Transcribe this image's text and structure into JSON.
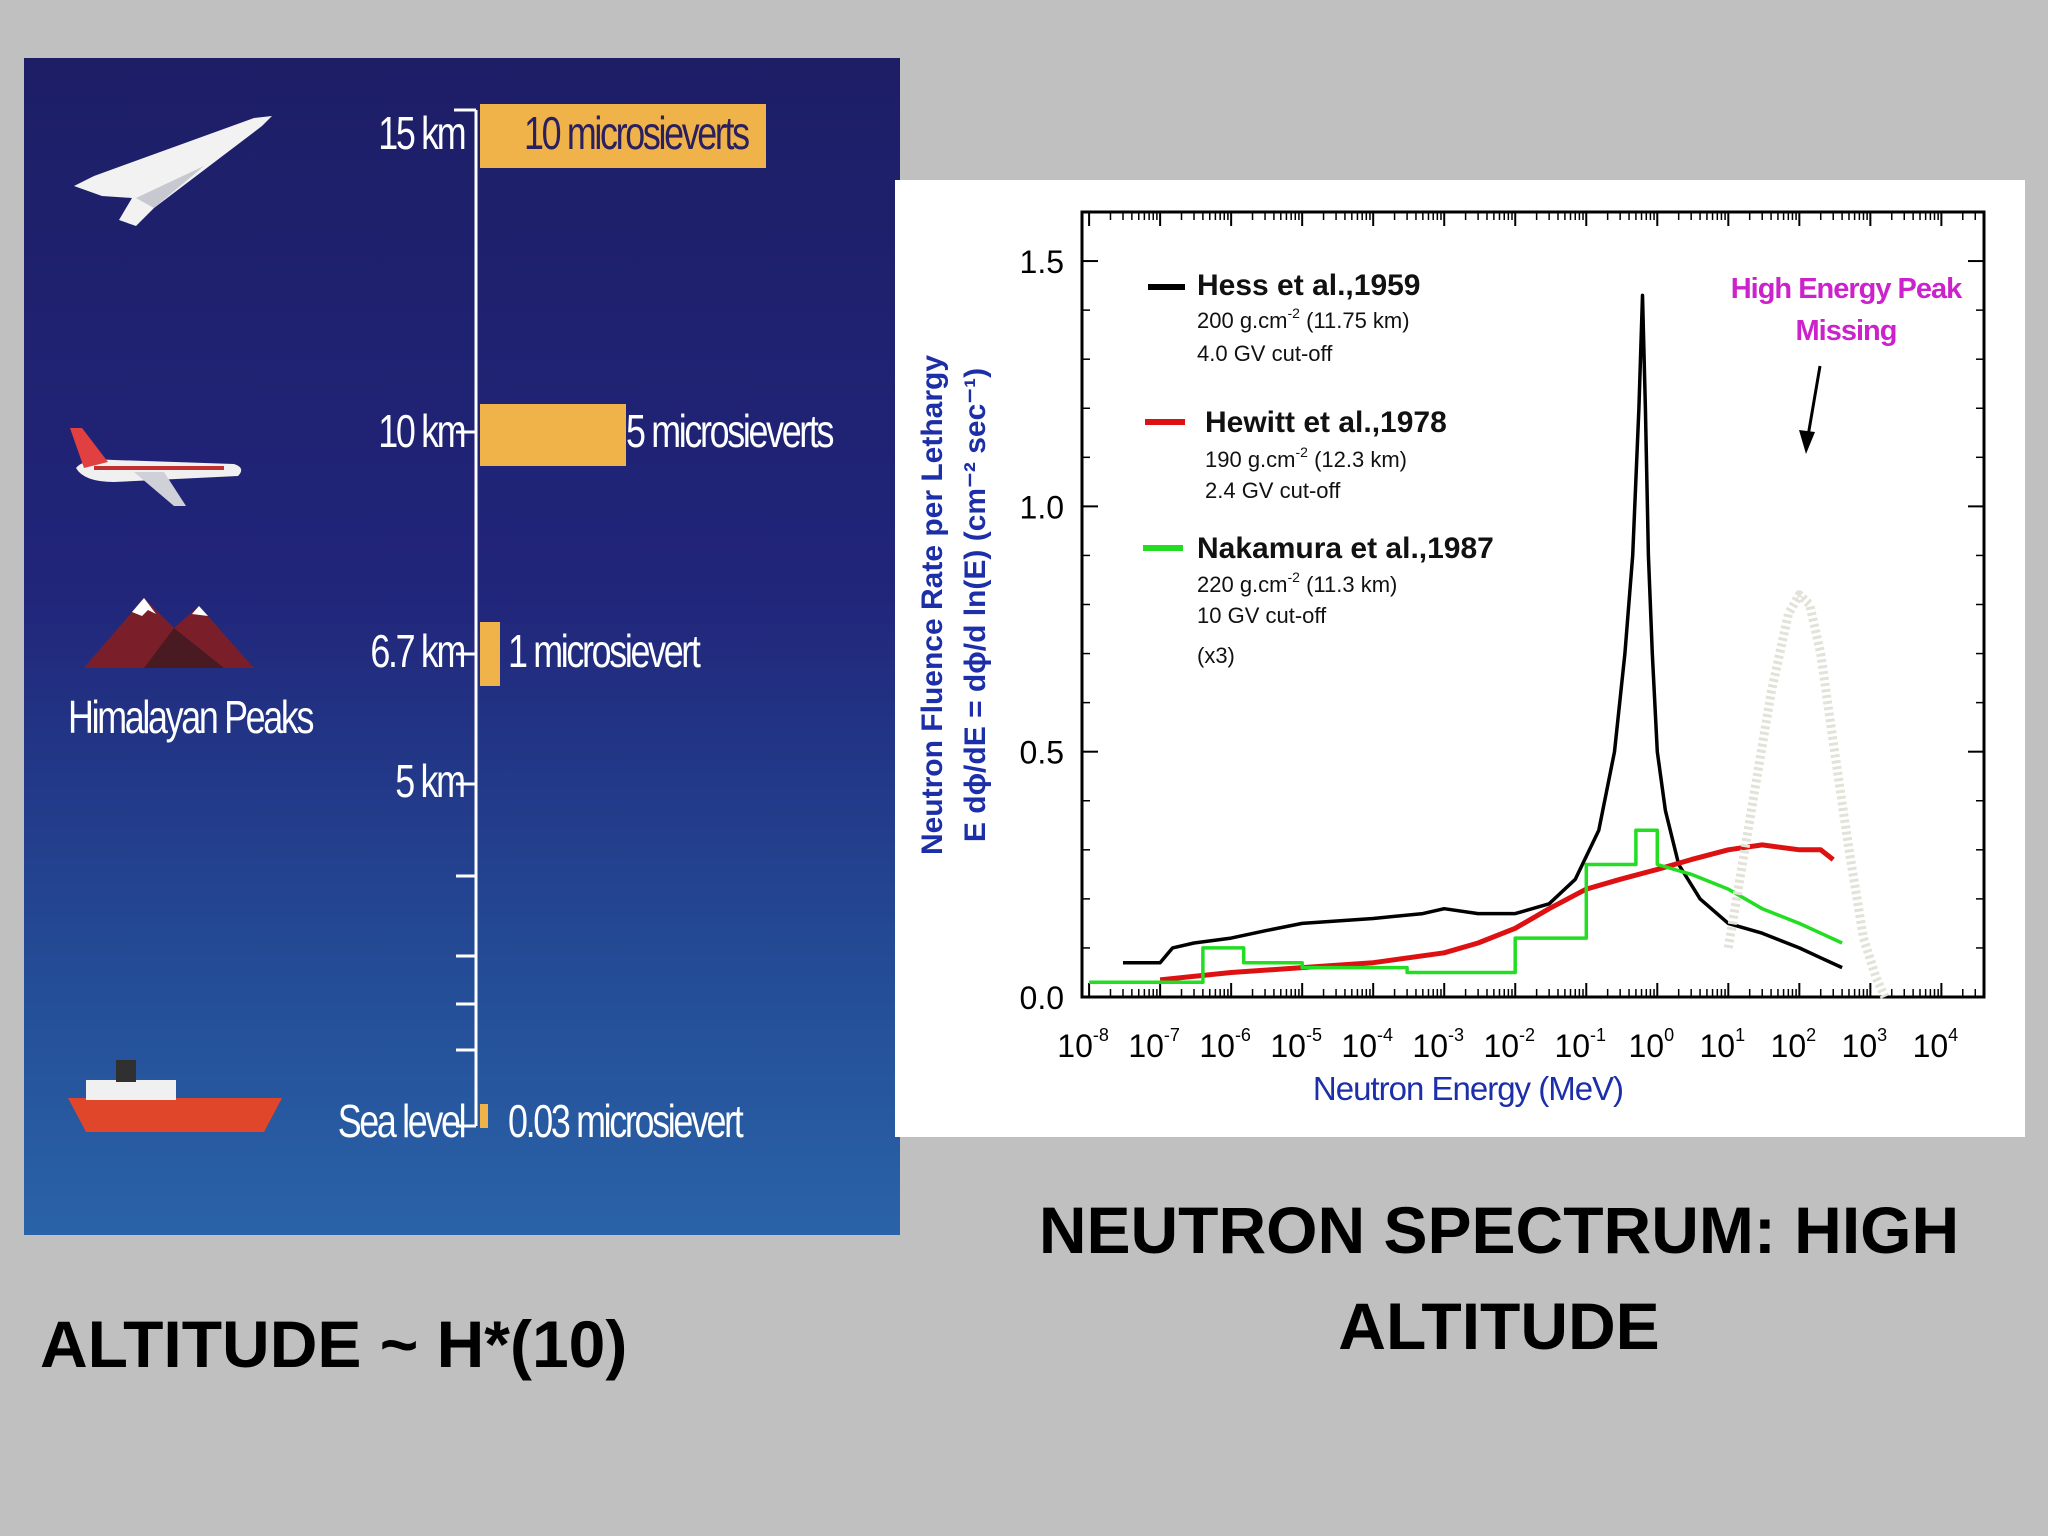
{
  "captions": {
    "left": "ALTITUDE ~ H*(10)",
    "right_line1": "NEUTRON SPECTRUM: HIGH",
    "right_line2": "ALTITUDE"
  },
  "altitude_figure": {
    "levels": [
      {
        "altitude": "15 km",
        "dose": "10 microsieverts",
        "dose_uSv": 10
      },
      {
        "altitude": "10 km",
        "dose": "5 microsieverts",
        "dose_uSv": 5
      },
      {
        "altitude": "6.7 km",
        "dose": "1 microsievert",
        "dose_uSv": 1
      },
      {
        "altitude": "5 km",
        "dose": "",
        "dose_uSv": null
      },
      {
        "altitude": "Sea level",
        "dose": "0.03 microsievert",
        "dose_uSv": 0.03
      }
    ],
    "himalaya_label": "Himalayan Peaks",
    "icons": [
      "concorde-icon",
      "airliner-icon",
      "mountain-icon",
      "ship-icon"
    ]
  },
  "chart_data": {
    "type": "line",
    "xscale": "log",
    "xlim": [
      1e-08,
      10000
    ],
    "ylim": [
      0,
      1.6
    ],
    "xlabel": "Neutron Energy (MeV)",
    "ylabel_line1": "Neutron Fluence Rate per Lethargy",
    "ylabel_line2": "E dϕ/dE = dϕ/d ln(E) (cm⁻² sec⁻¹)",
    "yticks": [
      "0.0",
      "0.5",
      "1.0",
      "1.5"
    ],
    "xtick_exponents": [
      "-8",
      "-7",
      "-6",
      "-5",
      "-4",
      "-3",
      "-2",
      "-1",
      "0",
      "1",
      "2",
      "3",
      "4"
    ],
    "annotation": {
      "line1": "High Energy Peak",
      "line2": "Missing",
      "color": "#cc22cc"
    },
    "legend": [
      {
        "name": "Hess et al.,1959",
        "detail1": "200 g.cm",
        "sup1": "-2",
        "detail1b": " (11.75 km)",
        "detail2": "4.0 GV cut-off",
        "detail3": "",
        "color": "#000000"
      },
      {
        "name": "Hewitt et al.,1978",
        "detail1": "190 g.cm",
        "sup1": "-2",
        "detail1b": " (12.3 km)",
        "detail2": "2.4 GV cut-off",
        "detail3": "",
        "color": "#dd1111"
      },
      {
        "name": "Nakamura et al.,1987",
        "detail1": "220 g.cm",
        "sup1": "-2",
        "detail1b": " (11.3 km)",
        "detail2": "10 GV cut-off",
        "detail3": "(x3)",
        "color": "#22dd22"
      }
    ],
    "series": [
      {
        "name": "Hess et al.,1959",
        "color": "#000000",
        "x": [
          3e-08,
          1e-07,
          1.5e-07,
          3e-07,
          1e-06,
          3e-06,
          1e-05,
          0.0001,
          0.0005,
          0.001,
          0.003,
          0.01,
          0.03,
          0.07,
          0.15,
          0.25,
          0.35,
          0.45,
          0.55,
          0.62,
          0.68,
          0.75,
          0.85,
          1.0,
          1.3,
          2.0,
          4.0,
          10,
          30,
          100,
          200,
          400
        ],
        "y": [
          0.07,
          0.07,
          0.1,
          0.11,
          0.12,
          0.135,
          0.15,
          0.16,
          0.17,
          0.18,
          0.17,
          0.17,
          0.19,
          0.24,
          0.34,
          0.5,
          0.7,
          0.9,
          1.2,
          1.43,
          1.2,
          0.9,
          0.7,
          0.5,
          0.38,
          0.27,
          0.2,
          0.15,
          0.13,
          0.1,
          0.08,
          0.06
        ]
      },
      {
        "name": "Hewitt et al.,1978",
        "color": "#dd1111",
        "x": [
          1e-07,
          1e-06,
          1e-05,
          0.0001,
          0.001,
          0.003,
          0.01,
          0.03,
          0.1,
          0.3,
          1.0,
          3.0,
          10,
          30,
          100,
          200,
          300
        ],
        "y": [
          0.035,
          0.05,
          0.06,
          0.07,
          0.09,
          0.11,
          0.14,
          0.18,
          0.22,
          0.24,
          0.26,
          0.28,
          0.3,
          0.31,
          0.3,
          0.3,
          0.28
        ]
      },
      {
        "name": "Nakamura et al.,1987",
        "color": "#22dd22",
        "x": [
          1e-08,
          4e-07,
          4e-07,
          1.5e-06,
          1.5e-06,
          1e-05,
          1e-05,
          0.0003,
          0.0003,
          0.01,
          0.01,
          0.1,
          0.1,
          0.5,
          0.5,
          1.0,
          1.0,
          3.0,
          10,
          30,
          100,
          200,
          400
        ],
        "y": [
          0.03,
          0.03,
          0.1,
          0.1,
          0.07,
          0.07,
          0.06,
          0.06,
          0.05,
          0.05,
          0.12,
          0.12,
          0.27,
          0.27,
          0.34,
          0.34,
          0.27,
          0.25,
          0.22,
          0.18,
          0.15,
          0.13,
          0.11
        ]
      },
      {
        "name": "High Energy Peak",
        "color": "#e2e2d8",
        "x": [
          10,
          20,
          40,
          70,
          100,
          140,
          200,
          300,
          500,
          800,
          1200,
          1600
        ],
        "y": [
          0.1,
          0.36,
          0.62,
          0.78,
          0.82,
          0.8,
          0.7,
          0.52,
          0.3,
          0.12,
          0.04,
          0.0
        ]
      }
    ]
  }
}
